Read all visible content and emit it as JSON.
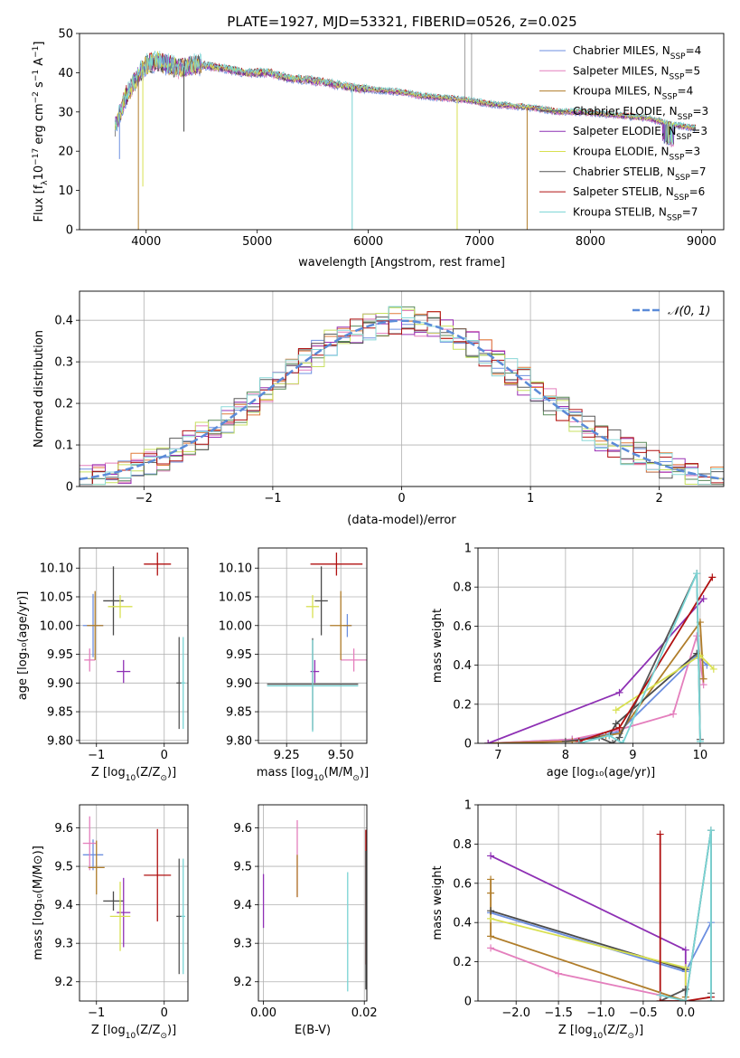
{
  "figure_title": "PLATE=1927, MJD=53321, FIBERID=0526, z=0.025",
  "colors": {
    "series": [
      "#6c8fe0",
      "#e47fbd",
      "#b07d2a",
      "#4a4a4a",
      "#8e30b4",
      "#d8e050",
      "#555555",
      "#b01010",
      "#78d4d4"
    ],
    "dist": [
      "#6c8fe0",
      "#e47fbd",
      "#e07b39",
      "#5a8a5a",
      "#9a30b4",
      "#c8e060",
      "#5a5a5a",
      "#b01010",
      "#8ad8d8"
    ],
    "normal_curve": "#5b8bd8",
    "grid": "#b0b0b0"
  },
  "chart_data": [
    {
      "id": "spectrum",
      "type": "line",
      "title": "PLATE=1927, MJD=53321, FIBERID=0526, z=0.025",
      "xlabel": "wavelength [Angstrom, rest frame]",
      "ylabel_main": "Flux [f",
      "ylabel_sub": "λ",
      "ylabel_mid": "10",
      "ylabel_sup": "−17",
      "ylabel_tail": " erg cm",
      "ylabel_sup2": "−2",
      "ylabel_tail2": " s",
      "ylabel_sup3": "−1",
      "ylabel_tail3": " A",
      "ylabel_sup4": "−1",
      "ylabel_end": "]",
      "xlim": [
        3400,
        9200
      ],
      "ylim": [
        0,
        50
      ],
      "xticks": [
        4000,
        5000,
        6000,
        7000,
        8000,
        9000
      ],
      "yticks": [
        0,
        10,
        20,
        30,
        40,
        50
      ],
      "grid": false,
      "legend_position": "top-right",
      "legend": [
        {
          "name": "Chabrier MILES, N",
          "sub": "SSP",
          "val": "=4"
        },
        {
          "name": "Salpeter MILES, N",
          "sub": "SSP",
          "val": "=5"
        },
        {
          "name": "Kroupa MILES, N",
          "sub": "SSP",
          "val": "=4"
        },
        {
          "name": "Chabrier ELODIE, N",
          "sub": "SSP",
          "val": "=3"
        },
        {
          "name": "Salpeter ELODIE, N",
          "sub": "SSP",
          "val": "=3"
        },
        {
          "name": "Kroupa ELODIE, N",
          "sub": "SSP",
          "val": "=3"
        },
        {
          "name": "Chabrier STELIB, N",
          "sub": "SSP",
          "val": "=7"
        },
        {
          "name": "Salpeter STELIB, N",
          "sub": "SSP",
          "val": "=6"
        },
        {
          "name": "Kroupa STELIB, N",
          "sub": "SSP",
          "val": "=7"
        }
      ],
      "continuum": {
        "x": [
          3720,
          3800,
          3900,
          4000,
          4100,
          4200,
          4300,
          4400,
          4500,
          4700,
          4900,
          5100,
          5300,
          5500,
          5700,
          5900,
          6100,
          6300,
          6500,
          6700,
          6900,
          7100,
          7300,
          7500,
          7700,
          7900,
          8100,
          8300,
          8500,
          8700,
          8900
        ],
        "y": [
          26,
          33,
          38,
          42,
          43,
          42,
          41,
          42,
          42,
          41,
          40,
          40,
          38.5,
          38,
          37,
          36,
          35.5,
          35,
          34,
          33.5,
          33,
          32,
          31.5,
          31,
          30,
          30,
          29.5,
          29,
          28.5,
          27,
          26
        ]
      },
      "dips": [
        {
          "x": 3930,
          "y": 0,
          "series": 2
        },
        {
          "x": 3970,
          "y": 11,
          "series": 5
        },
        {
          "x": 5855,
          "y": 0,
          "series": 8
        },
        {
          "x": 6800,
          "y": 0,
          "series": 5
        },
        {
          "x": 7430,
          "y": 0,
          "series": 2
        },
        {
          "x": 3760,
          "y": 18,
          "series": 0
        },
        {
          "x": 4340,
          "y": 25,
          "series": 3
        }
      ],
      "spikes": [
        {
          "x": 6870,
          "y": 50,
          "series": 3
        },
        {
          "x": 6930,
          "y": 50,
          "series": 3
        }
      ]
    },
    {
      "id": "residual_distribution",
      "type": "line",
      "xlabel": "(data-model)/error",
      "ylabel": "Normed distribution",
      "xlim": [
        -2.5,
        2.5
      ],
      "ylim": [
        0,
        0.47
      ],
      "xticks": [
        -2,
        -1,
        0,
        1,
        2
      ],
      "yticks": [
        0.0,
        0.1,
        0.2,
        0.3,
        0.4
      ],
      "grid": true,
      "legend_position": "top-right",
      "legend": [
        {
          "name": "𝒩(0, 1)"
        }
      ],
      "bin_width": 0.1
    },
    {
      "id": "age_vs_Z",
      "type": "scatter",
      "xlabel": "Z [log",
      "xlabel_sub": "10",
      "xlabel_tail": "(Z/Z",
      "xlabel_sub2": "⊙",
      "xlabel_end": ")]",
      "ylabel": "age  [log₁₀(age/yr)]",
      "xlim": [
        -1.25,
        0.35
      ],
      "ylim": [
        9.795,
        10.135
      ],
      "xticks": [
        -1,
        0
      ],
      "yticks": [
        9.8,
        9.85,
        9.9,
        9.95,
        10.0,
        10.05,
        10.1
      ],
      "ytick_labels": [
        "9.80",
        "9.85",
        "9.90",
        "9.95",
        "10.00",
        "10.05",
        "10.10"
      ],
      "grid": true,
      "points": [
        {
          "x": -1.05,
          "xerr": 0.15,
          "y": 10.0,
          "yerr": 0.055,
          "series": 0
        },
        {
          "x": -1.1,
          "xerr": 0.08,
          "y": 9.94,
          "yerr": 0.02,
          "series": 1
        },
        {
          "x": -1.02,
          "xerr": 0.12,
          "y": 10.0,
          "yerr": 0.06,
          "series": 2
        },
        {
          "x": -0.75,
          "xerr": 0.15,
          "y": 10.043,
          "yerr": 0.06,
          "series": 3
        },
        {
          "x": -0.6,
          "xerr": 0.1,
          "y": 9.92,
          "yerr": 0.02,
          "series": 4
        },
        {
          "x": -0.65,
          "xerr": 0.18,
          "y": 10.033,
          "yerr": 0.02,
          "series": 5
        },
        {
          "x": 0.22,
          "xerr": 0.04,
          "y": 9.9,
          "yerr": 0.08,
          "series": 6
        },
        {
          "x": -0.1,
          "xerr": 0.2,
          "y": 10.107,
          "yerr": 0.02,
          "series": 7
        },
        {
          "x": 0.28,
          "xerr": 0.03,
          "y": 9.9,
          "yerr": 0.08,
          "series": 8
        }
      ]
    },
    {
      "id": "age_vs_mass",
      "type": "scatter",
      "xlabel": "mass [log",
      "xlabel_sub": "10",
      "xlabel_tail": "(M/M",
      "xlabel_sub2": "⊙",
      "xlabel_end": ")]",
      "xlim": [
        9.12,
        9.62
      ],
      "ylim": [
        9.795,
        10.135
      ],
      "xticks": [
        9.25,
        9.5
      ],
      "xtick_labels": [
        "9.25",
        "9.50"
      ],
      "yticks": [
        9.8,
        9.85,
        9.9,
        9.95,
        10.0,
        10.05,
        10.1
      ],
      "ytick_labels": [
        "9.80",
        "9.85",
        "9.90",
        "9.95",
        "10.00",
        "10.05",
        "10.10"
      ],
      "grid": true,
      "points": [
        {
          "x": 9.53,
          "xerr": 0.02,
          "y": 10.0,
          "yerr": 0.02,
          "series": 0
        },
        {
          "x": 9.56,
          "xerr": 0.06,
          "y": 9.94,
          "yerr": 0.02,
          "series": 1
        },
        {
          "x": 9.5,
          "xerr": 0.05,
          "y": 10.0,
          "yerr": 0.06,
          "series": 2
        },
        {
          "x": 9.41,
          "xerr": 0.03,
          "y": 10.043,
          "yerr": 0.06,
          "series": 3
        },
        {
          "x": 9.38,
          "xerr": 0.02,
          "y": 9.92,
          "yerr": 0.02,
          "series": 4
        },
        {
          "x": 9.37,
          "xerr": 0.03,
          "y": 10.033,
          "yerr": 0.02,
          "series": 5
        },
        {
          "x": 9.37,
          "xerr": 0.21,
          "y": 9.898,
          "yerr": 0.08,
          "series": 6
        },
        {
          "x": 9.48,
          "xerr": 0.12,
          "y": 10.107,
          "yerr": 0.02,
          "series": 7
        },
        {
          "x": 9.37,
          "xerr": 0.21,
          "y": 9.895,
          "yerr": 0.08,
          "series": 8
        }
      ]
    },
    {
      "id": "mass_weight_vs_age",
      "type": "line",
      "xlabel": "age  [log₁₀(age/yr)]",
      "ylabel": "mass weight",
      "xlim": [
        6.7,
        10.35
      ],
      "ylim": [
        0,
        1.0
      ],
      "xticks": [
        7,
        8,
        9,
        10
      ],
      "yticks": [
        0.0,
        0.2,
        0.4,
        0.6,
        0.8,
        1.0
      ],
      "grid": true,
      "series": [
        {
          "x": [
            6.85,
            8.1,
            8.55,
            8.8,
            9.95,
            10.1
          ],
          "y": [
            0.0,
            0.02,
            0.04,
            0.06,
            0.45,
            0.4
          ],
          "series": 0
        },
        {
          "x": [
            6.85,
            8.1,
            8.8,
            9.6,
            9.95,
            10.05
          ],
          "y": [
            0.0,
            0.02,
            0.07,
            0.15,
            0.55,
            0.3
          ],
          "series": 1
        },
        {
          "x": [
            6.85,
            8.1,
            8.6,
            8.8,
            10.0,
            10.05
          ],
          "y": [
            0.0,
            0.01,
            0.04,
            0.05,
            0.62,
            0.33
          ],
          "series": 2
        },
        {
          "x": [
            8.65,
            8.75,
            9.95
          ],
          "y": [
            0.04,
            0.1,
            0.46
          ],
          "series": 3
        },
        {
          "x": [
            6.85,
            8.8,
            10.05
          ],
          "y": [
            0.0,
            0.26,
            0.74
          ],
          "series": 4
        },
        {
          "x": [
            8.75,
            10.0,
            10.2
          ],
          "y": [
            0.17,
            0.45,
            0.38
          ],
          "series": 5
        },
        {
          "x": [
            8.0,
            8.5,
            8.7,
            8.8,
            9.95,
            10.0
          ],
          "y": [
            0.01,
            0.03,
            0.0,
            0.03,
            0.87,
            0.02
          ],
          "series": 6
        },
        {
          "x": [
            8.2,
            8.8,
            10.18
          ],
          "y": [
            0.01,
            0.08,
            0.85
          ],
          "series": 7
        },
        {
          "x": [
            8.2,
            8.65,
            8.85,
            9.95,
            10.0
          ],
          "y": [
            0.0,
            0.04,
            0.0,
            0.87,
            0.01
          ],
          "series": 8
        }
      ]
    },
    {
      "id": "mass_vs_Z",
      "type": "scatter",
      "xlabel": "Z [log",
      "xlabel_sub": "10",
      "xlabel_tail": "(Z/Z",
      "xlabel_sub2": "⊙",
      "xlabel_end": ")]",
      "ylabel": "mass [log₁₀(M/M⊙)]",
      "xlim": [
        -1.25,
        0.35
      ],
      "ylim": [
        9.15,
        9.66
      ],
      "xticks": [
        -1,
        0
      ],
      "yticks": [
        9.2,
        9.3,
        9.4,
        9.5,
        9.6
      ],
      "ytick_labels": [
        "9.2",
        "9.3",
        "9.4",
        "9.5",
        "9.6"
      ],
      "grid": true,
      "points": [
        {
          "x": -1.05,
          "xerr": 0.15,
          "y": 9.53,
          "yerr": 0.04,
          "series": 0
        },
        {
          "x": -1.1,
          "xerr": 0.1,
          "y": 9.56,
          "yerr": 0.07,
          "series": 1
        },
        {
          "x": -1.0,
          "xerr": 0.12,
          "y": 9.497,
          "yerr": 0.07,
          "series": 2
        },
        {
          "x": -0.75,
          "xerr": 0.15,
          "y": 9.41,
          "yerr": 0.025,
          "series": 3
        },
        {
          "x": -0.6,
          "xerr": 0.1,
          "y": 9.38,
          "yerr": 0.09,
          "series": 4
        },
        {
          "x": -0.65,
          "xerr": 0.15,
          "y": 9.37,
          "yerr": 0.09,
          "series": 5
        },
        {
          "x": 0.22,
          "xerr": 0.04,
          "y": 9.37,
          "yerr": 0.15,
          "series": 6
        },
        {
          "x": -0.1,
          "xerr": 0.2,
          "y": 9.477,
          "yerr": 0.12,
          "series": 7
        },
        {
          "x": 0.28,
          "xerr": 0.03,
          "y": 9.37,
          "yerr": 0.15,
          "series": 8
        }
      ]
    },
    {
      "id": "mass_vs_EBV",
      "type": "scatter",
      "xlabel": "E(B-V)",
      "xlim": [
        -0.001,
        0.0205
      ],
      "ylim": [
        9.15,
        9.66
      ],
      "xticks": [
        0.0,
        0.02
      ],
      "xtick_labels": [
        "0.00",
        "0.02"
      ],
      "yticks": [
        9.2,
        9.3,
        9.4,
        9.5,
        9.6
      ],
      "ytick_labels": [
        "9.2",
        "9.3",
        "9.4",
        "9.5",
        "9.6"
      ],
      "grid": true,
      "points": [
        {
          "x": 0.0,
          "xerr": 0,
          "y": 9.41,
          "yerr": 0.07,
          "series": 4
        },
        {
          "x": 0.0067,
          "xerr": 0,
          "y": 9.52,
          "yerr": 0.1,
          "series": 1
        },
        {
          "x": 0.0067,
          "xerr": 0,
          "y": 9.475,
          "yerr": 0.055,
          "series": 2
        },
        {
          "x": 0.0167,
          "xerr": 0,
          "y": 9.33,
          "yerr": 0.155,
          "series": 8
        },
        {
          "x": 0.0203,
          "xerr": 0,
          "y": 9.42,
          "yerr": 0.175,
          "series": 7
        },
        {
          "x": 0.0203,
          "xerr": 0,
          "y": 9.36,
          "yerr": 0.18,
          "series": 6
        }
      ]
    },
    {
      "id": "mass_weight_vs_Z",
      "type": "line",
      "xlabel": "Z [log",
      "xlabel_sub": "10",
      "xlabel_tail": "(Z/Z",
      "xlabel_sub2": "⊙",
      "xlabel_end": ")]",
      "ylabel": "mass weight",
      "xlim": [
        -2.45,
        0.45
      ],
      "ylim": [
        0,
        1.0
      ],
      "xticks": [
        -2.0,
        -1.5,
        -1.0,
        -0.5,
        0.0
      ],
      "xtick_labels": [
        "−2.0",
        "−1.5",
        "−1.0",
        "−0.5",
        "0.0"
      ],
      "yticks": [
        0.0,
        0.2,
        0.4,
        0.6,
        0.8,
        1.0
      ],
      "grid": true,
      "series": [
        {
          "x": [
            -2.3,
            0.0,
            0.3
          ],
          "y": [
            0.45,
            0.15,
            0.4
          ],
          "series": 0
        },
        {
          "x": [
            -2.3,
            -1.5,
            -0.3,
            0.0
          ],
          "y": [
            0.27,
            0.14,
            0.03,
            0.0
          ],
          "series": 1
        },
        {
          "x": [
            -2.3,
            -2.3,
            -2.3,
            0.0,
            0.0
          ],
          "y": [
            0.62,
            0.55,
            0.33,
            0.0,
            0.02
          ],
          "series": 2
        },
        {
          "x": [
            -2.3,
            0.0
          ],
          "y": [
            0.46,
            0.16
          ],
          "series": 3
        },
        {
          "x": [
            -2.3,
            0.0,
            0.0
          ],
          "y": [
            0.74,
            0.26,
            0.0
          ],
          "series": 4
        },
        {
          "x": [
            -2.3,
            0.0,
            0.0
          ],
          "y": [
            0.42,
            0.17,
            0.0
          ],
          "series": 5
        },
        {
          "x": [
            -0.3,
            0.0,
            0.0,
            0.3,
            0.3
          ],
          "y": [
            0.0,
            0.06,
            0.0,
            0.87,
            0.04
          ],
          "series": 6
        },
        {
          "x": [
            -0.3,
            -0.3,
            0.0,
            0.3
          ],
          "y": [
            0.85,
            0.0,
            0.0,
            0.02
          ],
          "series": 7
        },
        {
          "x": [
            -0.3,
            0.0,
            0.3,
            0.3
          ],
          "y": [
            0.03,
            0.0,
            0.87,
            0.0
          ],
          "series": 8
        }
      ]
    }
  ]
}
